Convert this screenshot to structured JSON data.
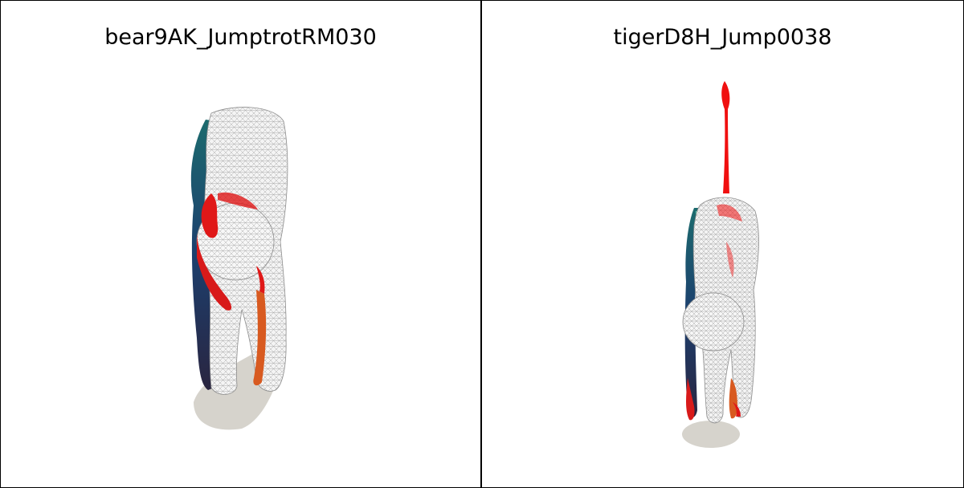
{
  "panels": [
    {
      "title": "bear9AK_JumptrotRM030",
      "model": "bear",
      "mesh_style": "wireframe-overlay",
      "colors": {
        "shadow": "#d6d3cc",
        "wire": "#9a9a9a",
        "red": "#e01818",
        "teal": "#7fe8c8",
        "blue": "#1c3f6e",
        "orange": "#d85a20"
      }
    },
    {
      "title": "tigerD8H_Jump0038",
      "model": "tiger",
      "mesh_style": "wireframe-overlay",
      "colors": {
        "shadow": "#d6d3cc",
        "wire": "#9a9a9a",
        "red": "#f01010",
        "teal": "#7fe8c8",
        "blue": "#1c3f6e",
        "orange": "#d85a20"
      }
    }
  ]
}
